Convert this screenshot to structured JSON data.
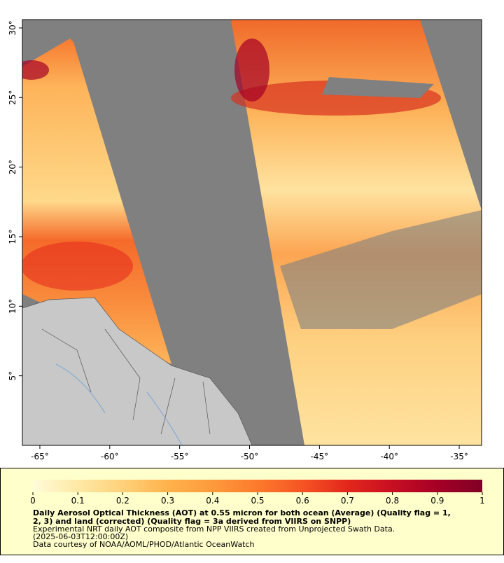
{
  "map": {
    "xlim": [
      -66.25,
      -33.4
    ],
    "ylim": [
      0,
      30.6
    ],
    "lon_ticks": [
      {
        "value": -65,
        "label": "-65°"
      },
      {
        "value": -60,
        "label": "-60°"
      },
      {
        "value": -55,
        "label": "-55°"
      },
      {
        "value": -50,
        "label": "-50°"
      },
      {
        "value": -45,
        "label": "-45°"
      },
      {
        "value": -40,
        "label": "-40°"
      },
      {
        "value": -35,
        "label": "-35°"
      }
    ],
    "lat_ticks": [
      {
        "value": 5,
        "label": "5°"
      },
      {
        "value": 10,
        "label": "10°"
      },
      {
        "value": 15,
        "label": "15°"
      },
      {
        "value": 20,
        "label": "20°"
      },
      {
        "value": 25,
        "label": "25°"
      },
      {
        "value": 30,
        "label": "30°"
      }
    ]
  },
  "colorbar": {
    "range": [
      0,
      1
    ],
    "ticks": [
      0,
      0.1,
      0.2,
      0.3,
      0.4,
      0.5,
      0.6,
      0.7,
      0.8,
      0.9,
      1
    ],
    "colors": [
      "#fffbd9",
      "#fee9a6",
      "#fed17a",
      "#feb24c",
      "#fd9a3c",
      "#fc7a2c",
      "#f55424",
      "#e3271c",
      "#c70f22",
      "#a50026",
      "#800026"
    ]
  },
  "caption": {
    "title_line1": "Daily Aerosol Optical Thickness (AOT) at 0.55 micron for both ocean (Average) (Quality flag = 1,",
    "title_line2": "2, 3) and land (corrected) (Quality flag = 3a derived from VIIRS on SNPP)",
    "line3": "Experimental NRT daily AOT composite from NPP VIIRS created from Unprojected Swath Data.",
    "line4": "(2025-06-03T12:00:00Z)",
    "line5": "Data courtesy of NOAA/AOML/PHOD/Atlantic OceanWatch"
  }
}
